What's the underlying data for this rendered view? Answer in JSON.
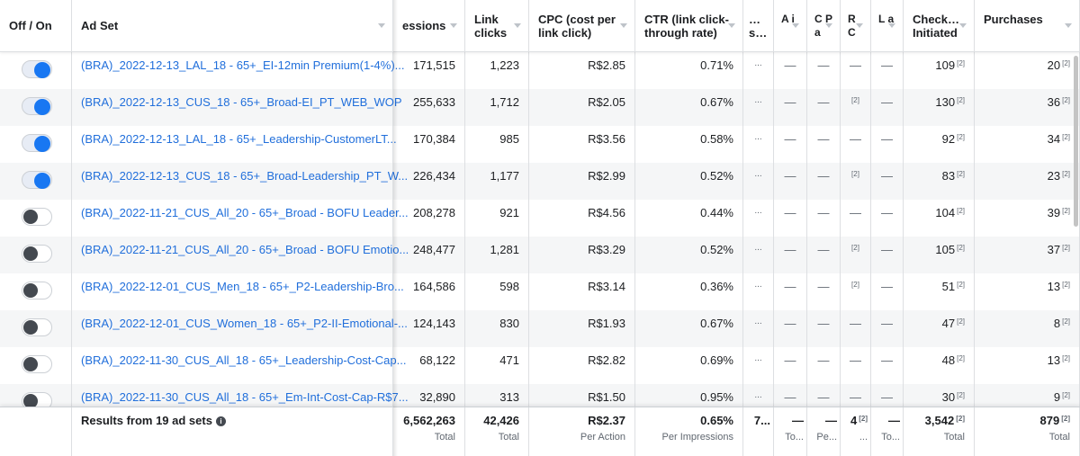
{
  "columns": [
    {
      "label": "Off / On"
    },
    {
      "label": "Ad Set"
    },
    {
      "label": "essions"
    },
    {
      "label": "Link clicks"
    },
    {
      "label": "CPC (cost per link click)"
    },
    {
      "label": "CTR (link click-through rate)"
    },
    {
      "label": "… s…"
    },
    {
      "label": "A i"
    },
    {
      "label": "C P a"
    },
    {
      "label": "R C"
    },
    {
      "label": "L a"
    },
    {
      "label": "Check… Initiated"
    },
    {
      "label": "Purchases"
    }
  ],
  "rows": [
    {
      "on": true,
      "name": "(BRA)_2022-12-13_LAL_18 - 65+_EI-12min Premium(1-4%)...",
      "impressions": "171,515",
      "clicks": "1,223",
      "cpc": "R$2.85",
      "ctr": "0.71%",
      "s": "...",
      "a": "—",
      "c": "—",
      "r": "—",
      "l": "—",
      "checkout": "109",
      "purchases": "20"
    },
    {
      "on": true,
      "name": "(BRA)_2022-12-13_CUS_18 - 65+_Broad-EI_PT_WEB_WOP",
      "impressions": "255,633",
      "clicks": "1,712",
      "cpc": "R$2.05",
      "ctr": "0.67%",
      "s": "...",
      "a": "—",
      "c": "—",
      "r": "[2]",
      "l": "—",
      "checkout": "130",
      "purchases": "36"
    },
    {
      "on": true,
      "name": "(BRA)_2022-12-13_LAL_18 - 65+_Leadership-CustomerLT...",
      "impressions": "170,384",
      "clicks": "985",
      "cpc": "R$3.56",
      "ctr": "0.58%",
      "s": "...",
      "a": "—",
      "c": "—",
      "r": "—",
      "l": "—",
      "checkout": "92",
      "purchases": "34"
    },
    {
      "on": true,
      "name": "(BRA)_2022-12-13_CUS_18 - 65+_Broad-Leadership_PT_W...",
      "impressions": "226,434",
      "clicks": "1,177",
      "cpc": "R$2.99",
      "ctr": "0.52%",
      "s": "...",
      "a": "—",
      "c": "—",
      "r": "[2]",
      "l": "—",
      "checkout": "83",
      "purchases": "23"
    },
    {
      "on": false,
      "name": "(BRA)_2022-11-21_CUS_All_20 - 65+_Broad - BOFU Leader...",
      "impressions": "208,278",
      "clicks": "921",
      "cpc": "R$4.56",
      "ctr": "0.44%",
      "s": "...",
      "a": "—",
      "c": "—",
      "r": "—",
      "l": "—",
      "checkout": "104",
      "purchases": "39"
    },
    {
      "on": false,
      "name": "(BRA)_2022-11-21_CUS_All_20 - 65+_Broad - BOFU Emotio...",
      "impressions": "248,477",
      "clicks": "1,281",
      "cpc": "R$3.29",
      "ctr": "0.52%",
      "s": "...",
      "a": "—",
      "c": "—",
      "r": "[2]",
      "l": "—",
      "checkout": "105",
      "purchases": "37"
    },
    {
      "on": false,
      "name": "(BRA)_2022-12-01_CUS_Men_18 - 65+_P2-Leadership-Bro...",
      "impressions": "164,586",
      "clicks": "598",
      "cpc": "R$3.14",
      "ctr": "0.36%",
      "s": "...",
      "a": "—",
      "c": "—",
      "r": "[2]",
      "l": "—",
      "checkout": "51",
      "purchases": "13"
    },
    {
      "on": false,
      "name": "(BRA)_2022-12-01_CUS_Women_18 - 65+_P2-II-Emotional-...",
      "impressions": "124,143",
      "clicks": "830",
      "cpc": "R$1.93",
      "ctr": "0.67%",
      "s": "...",
      "a": "—",
      "c": "—",
      "r": "—",
      "l": "—",
      "checkout": "47",
      "purchases": "8"
    },
    {
      "on": false,
      "name": "(BRA)_2022-11-30_CUS_All_18 - 65+_Leadership-Cost-Cap...",
      "impressions": "68,122",
      "clicks": "471",
      "cpc": "R$2.82",
      "ctr": "0.69%",
      "s": "...",
      "a": "—",
      "c": "—",
      "r": "—",
      "l": "—",
      "checkout": "48",
      "purchases": "13"
    },
    {
      "on": false,
      "name": "(BRA)_2022-11-30_CUS_All_18 - 65+_Em-Int-Cost-Cap-R$7...",
      "impressions": "32,890",
      "clicks": "313",
      "cpc": "R$1.50",
      "ctr": "0.95%",
      "s": "...",
      "a": "—",
      "c": "—",
      "r": "—",
      "l": "—",
      "checkout": "30",
      "purchases": "9"
    }
  ],
  "footnote": "[2]",
  "footer": {
    "label": "Results from 19 ad sets",
    "info_icon": "info-icon",
    "impressions": {
      "value": "6,562,263",
      "sub": "Total"
    },
    "clicks": {
      "value": "42,426",
      "sub": "Total"
    },
    "cpc": {
      "value": "R$2.37",
      "sub": "Per Action"
    },
    "ctr": {
      "value": "0.65%",
      "sub": "Per Impressions"
    },
    "s": {
      "value": "7...",
      "sub": ""
    },
    "a": {
      "value": "—",
      "sub": "To..."
    },
    "c": {
      "value": "—",
      "sub": "Pe..."
    },
    "r": {
      "value": "4",
      "sub": "..."
    },
    "l": {
      "value": "—",
      "sub": "To..."
    },
    "checkout": {
      "value": "3,542",
      "sub": "Total"
    },
    "purchases": {
      "value": "879",
      "sub": "Total"
    }
  },
  "colors": {
    "link": "#216fdb",
    "toggle_on": "#1877f2",
    "toggle_off": "#444950"
  }
}
